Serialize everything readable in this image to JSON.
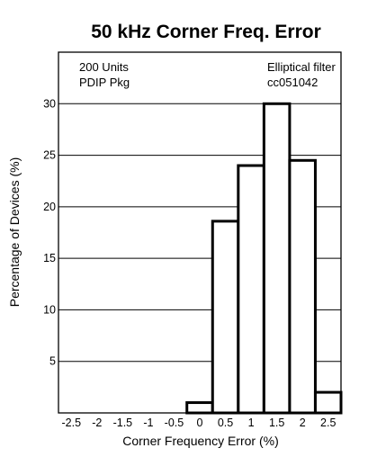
{
  "chart_data": {
    "type": "bar",
    "title": "50 kHz Corner Freq. Error",
    "xlabel": "Corner Frequency Error (%)",
    "ylabel": "Percentage of Devices (%)",
    "annotation_left": [
      "200 Units",
      "PDIP Pkg"
    ],
    "annotation_right": [
      "Elliptical filter",
      "cc051042"
    ],
    "xlim": [
      -2.75,
      2.75
    ],
    "ylim": [
      0,
      35
    ],
    "x_ticks": [
      -2.5,
      -2,
      -1.5,
      -1,
      -0.5,
      0,
      0.5,
      1,
      1.5,
      2,
      2.5
    ],
    "x_tick_labels": [
      "-2.5",
      "-2",
      "-1.5",
      "-1",
      "-0.5",
      "0",
      "0.5",
      "1",
      "1.5",
      "2",
      "2.5"
    ],
    "y_ticks": [
      5,
      10,
      15,
      20,
      25,
      30
    ],
    "y_tick_labels": [
      "5",
      "10",
      "15",
      "20",
      "25",
      "30"
    ],
    "bin_width": 0.5,
    "categories": [
      0,
      0.5,
      1,
      1.5,
      2,
      2.5
    ],
    "values": [
      1.0,
      18.6,
      24.0,
      30.0,
      24.5,
      2.0
    ],
    "grid": "horizontal"
  }
}
